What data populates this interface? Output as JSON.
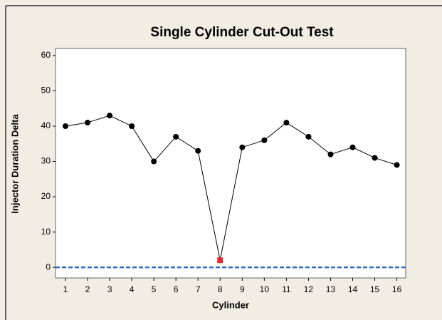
{
  "chart_data": {
    "type": "line",
    "title": "Single Cylinder Cut-Out Test",
    "xlabel": "Cylinder",
    "ylabel": "Injector Duration Delta",
    "x": [
      1,
      2,
      3,
      4,
      5,
      6,
      7,
      8,
      9,
      10,
      11,
      12,
      13,
      14,
      15,
      16
    ],
    "series": [
      {
        "name": "Injector Duration Delta",
        "color": "#000000",
        "values": [
          40,
          41,
          43,
          40,
          30,
          37,
          33,
          2,
          34,
          36,
          41,
          37,
          32,
          34,
          31,
          29
        ],
        "marker_colors": [
          "#000000",
          "#000000",
          "#000000",
          "#000000",
          "#000000",
          "#000000",
          "#000000",
          "#e8262e",
          "#000000",
          "#000000",
          "#000000",
          "#000000",
          "#000000",
          "#000000",
          "#000000",
          "#000000"
        ]
      }
    ],
    "xlim": [
      0.55,
      16.4
    ],
    "xticks": [
      1,
      2,
      3,
      4,
      5,
      6,
      7,
      8,
      9,
      10,
      11,
      12,
      13,
      14,
      15,
      16
    ],
    "ylim": [
      -3,
      62
    ],
    "yticks": [
      0,
      10,
      20,
      30,
      40,
      50,
      60
    ],
    "reference_line": {
      "value": 0,
      "color": "#2f6bc4"
    }
  }
}
